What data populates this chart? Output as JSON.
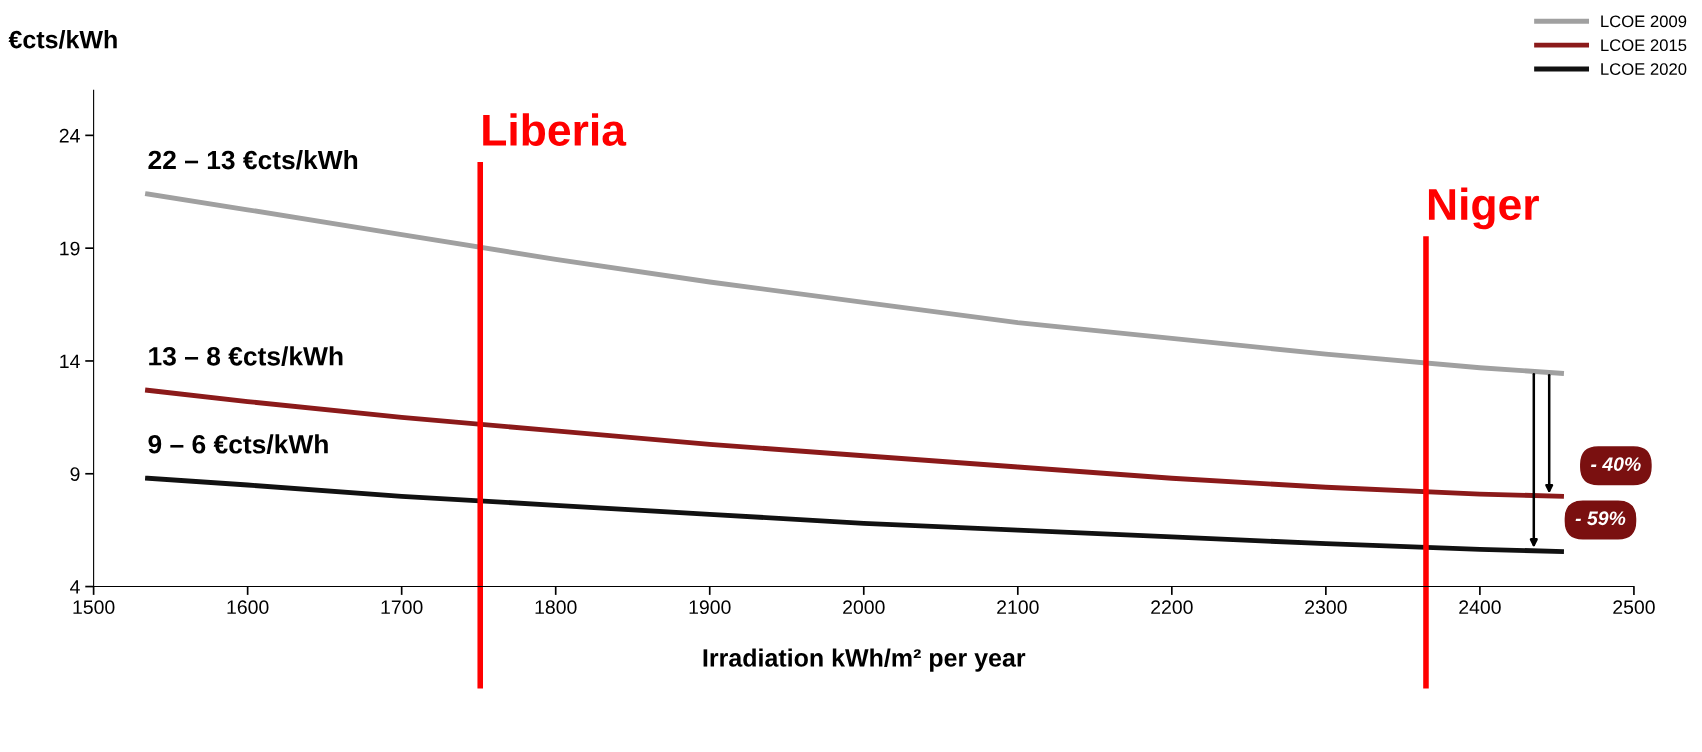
{
  "chart_data": {
    "type": "line",
    "xlabel": "Irradiation kWh/m² per year",
    "ylabel": "€cts/kWh",
    "x": [
      1535,
      1600,
      1700,
      1800,
      1900,
      2000,
      2100,
      2200,
      2300,
      2400,
      2453
    ],
    "series": [
      {
        "name": "LCOE 2009",
        "color": "#a0a0a0",
        "values": [
          21.4,
          20.7,
          19.6,
          18.5,
          17.5,
          16.6,
          15.7,
          15.0,
          14.3,
          13.7,
          13.45
        ]
      },
      {
        "name": "LCOE 2015",
        "color": "#8b1a1a",
        "values": [
          12.7,
          12.2,
          11.5,
          10.9,
          10.3,
          9.8,
          9.3,
          8.8,
          8.4,
          8.1,
          8.0
        ]
      },
      {
        "name": "LCOE 2020",
        "color": "#111111",
        "values": [
          8.8,
          8.5,
          8.0,
          7.6,
          7.2,
          6.8,
          6.5,
          6.2,
          5.9,
          5.65,
          5.55
        ]
      }
    ],
    "xlim": [
      1500,
      2500
    ],
    "xticks": [
      1500,
      1600,
      1700,
      1800,
      1900,
      2000,
      2100,
      2200,
      2300,
      2400,
      2500
    ],
    "ylim": [
      4,
      26
    ],
    "yticks": [
      4,
      9,
      14,
      19,
      24
    ],
    "ref_lines": [
      {
        "axis": "x",
        "value": 1751,
        "label": "Liberia",
        "color": "#ff0000"
      },
      {
        "axis": "x",
        "value": 2365,
        "label": "Niger",
        "color": "#ff0000"
      }
    ],
    "annotations": [
      "22 – 13 €cts/kWh",
      "13 – 8 €cts/kWh",
      "9 – 6 €cts/kWh",
      {
        "text": "- 40%",
        "x": 2445,
        "y": 8.0
      },
      {
        "text": "- 59%",
        "x": 2435,
        "y": 5.6
      }
    ],
    "legend": "top right",
    "grid": false
  }
}
